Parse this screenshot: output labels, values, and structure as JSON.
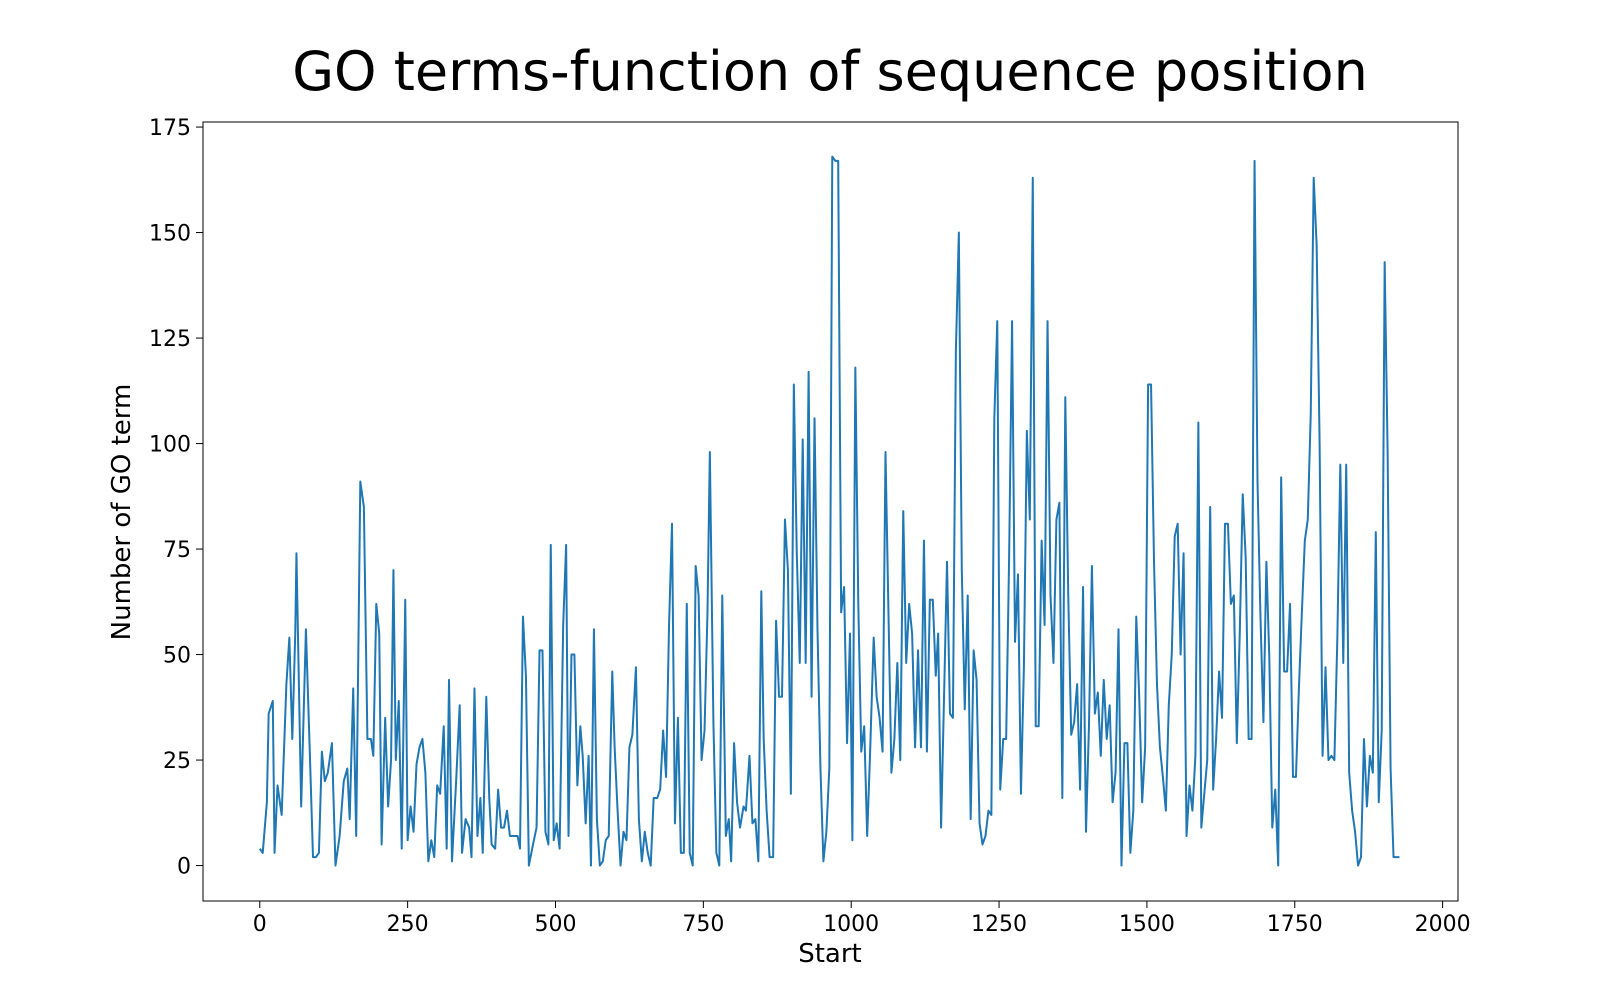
{
  "chart_data": {
    "type": "line",
    "title": "GO terms-function of sequence position",
    "xlabel": "Start",
    "ylabel": "Number of GO term",
    "x": [
      0,
      5,
      12,
      15,
      22,
      25,
      30,
      37,
      45,
      50,
      55,
      60,
      62,
      70,
      78,
      85,
      90,
      95,
      100,
      105,
      110,
      115,
      122,
      128,
      135,
      142,
      148,
      152,
      158,
      163,
      170,
      176,
      182,
      188,
      192,
      197,
      202,
      206,
      212,
      217,
      222,
      226,
      230,
      235,
      240,
      246,
      250,
      255,
      260,
      265,
      270,
      275,
      280,
      285,
      290,
      295,
      300,
      305,
      311,
      316,
      320,
      325,
      332,
      338,
      342,
      348,
      354,
      358,
      363,
      368,
      373,
      377,
      383,
      388,
      392,
      398,
      403,
      408,
      413,
      418,
      423,
      430,
      436,
      440,
      445,
      450,
      455,
      462,
      468,
      473,
      478,
      483,
      488,
      492,
      497,
      502,
      507,
      513,
      518,
      522,
      527,
      532,
      537,
      542,
      546,
      551,
      556,
      560,
      565,
      570,
      575,
      580,
      585,
      590,
      596,
      600,
      605,
      610,
      615,
      620,
      625,
      630,
      636,
      641,
      646,
      651,
      656,
      661,
      666,
      672,
      677,
      682,
      687,
      692,
      697,
      702,
      707,
      712,
      717,
      722,
      727,
      732,
      737,
      742,
      747,
      752,
      757,
      761,
      767,
      772,
      777,
      782,
      788,
      793,
      797,
      802,
      807,
      812,
      818,
      822,
      828,
      833,
      838,
      843,
      848,
      852,
      857,
      862,
      868,
      873,
      878,
      883,
      888,
      893,
      898,
      903,
      908,
      913,
      918,
      923,
      928,
      933,
      938,
      943,
      948,
      953,
      958,
      963,
      968,
      973,
      978,
      983,
      988,
      993,
      998,
      1002,
      1007,
      1012,
      1017,
      1022,
      1027,
      1032,
      1038,
      1043,
      1048,
      1053,
      1058,
      1063,
      1068,
      1073,
      1078,
      1083,
      1088,
      1093,
      1098,
      1103,
      1108,
      1113,
      1118,
      1123,
      1128,
      1133,
      1138,
      1143,
      1147,
      1152,
      1157,
      1162,
      1167,
      1172,
      1177,
      1182,
      1187,
      1192,
      1197,
      1202,
      1207,
      1212,
      1217,
      1222,
      1227,
      1232,
      1237,
      1242,
      1247,
      1252,
      1257,
      1262,
      1267,
      1272,
      1277,
      1282,
      1287,
      1292,
      1297,
      1302,
      1307,
      1312,
      1317,
      1322,
      1327,
      1332,
      1337,
      1342,
      1347,
      1352,
      1357,
      1362,
      1367,
      1372,
      1377,
      1382,
      1387,
      1392,
      1397,
      1402,
      1407,
      1412,
      1417,
      1422,
      1427,
      1432,
      1437,
      1442,
      1447,
      1452,
      1457,
      1462,
      1467,
      1472,
      1477,
      1482,
      1487,
      1492,
      1497,
      1502,
      1507,
      1512,
      1517,
      1522,
      1527,
      1532,
      1537,
      1542,
      1547,
      1552,
      1557,
      1562,
      1567,
      1572,
      1577,
      1582,
      1587,
      1592,
      1597,
      1602,
      1607,
      1612,
      1617,
      1622,
      1627,
      1632,
      1637,
      1642,
      1647,
      1652,
      1657,
      1662,
      1667,
      1672,
      1677,
      1682,
      1687,
      1692,
      1697,
      1702,
      1707,
      1712,
      1717,
      1722,
      1727,
      1732,
      1737,
      1742,
      1747,
      1752,
      1757,
      1762,
      1767,
      1772,
      1777,
      1782,
      1787,
      1792,
      1797,
      1802,
      1807,
      1812,
      1817,
      1822,
      1827,
      1832,
      1837,
      1842,
      1847,
      1852,
      1857,
      1862,
      1867,
      1872,
      1877,
      1882,
      1887,
      1892,
      1897,
      1902,
      1907,
      1912,
      1917,
      1927
    ],
    "series": [
      {
        "name": "GO terms",
        "color": "#1f77b4",
        "values": [
          4,
          3,
          15,
          36,
          39,
          3,
          19,
          12,
          43,
          54,
          30,
          55,
          74,
          14,
          56,
          25,
          2,
          2,
          3,
          27,
          20,
          22,
          29,
          0,
          7,
          20,
          23,
          11,
          42,
          7,
          91,
          85,
          30,
          30,
          26,
          62,
          55,
          5,
          35,
          14,
          25,
          70,
          25,
          39,
          4,
          63,
          6,
          14,
          8,
          24,
          28,
          30,
          22,
          1,
          6,
          2,
          19,
          17,
          33,
          4,
          44,
          1,
          20,
          38,
          3,
          11,
          9,
          2,
          42,
          7,
          16,
          3,
          40,
          16,
          5,
          4,
          18,
          9,
          9,
          13,
          7,
          7,
          7,
          4,
          59,
          45,
          0,
          5,
          9,
          51,
          51,
          8,
          5,
          76,
          6,
          10,
          4,
          57,
          76,
          7,
          50,
          50,
          19,
          33,
          26,
          10,
          26,
          0,
          56,
          11,
          0,
          1,
          6,
          7,
          46,
          28,
          13,
          0,
          8,
          6,
          28,
          31,
          47,
          11,
          1,
          8,
          3,
          0,
          16,
          16,
          18,
          32,
          21,
          57,
          81,
          10,
          35,
          3,
          3,
          62,
          3,
          0,
          71,
          64,
          25,
          32,
          60,
          98,
          34,
          3,
          0,
          64,
          7,
          11,
          1,
          29,
          15,
          9,
          14,
          13,
          26,
          10,
          11,
          1,
          65,
          30,
          13,
          2,
          2,
          58,
          40,
          40,
          82,
          70,
          17,
          114,
          74,
          48,
          101,
          48,
          117,
          40,
          106,
          56,
          23,
          1,
          8,
          23,
          168,
          167,
          167,
          60,
          66,
          29,
          55,
          6,
          118,
          62,
          27,
          33,
          7,
          27,
          54,
          40,
          35,
          27,
          98,
          60,
          22,
          30,
          48,
          25,
          84,
          48,
          62,
          55,
          28,
          51,
          28,
          77,
          27,
          63,
          63,
          45,
          55,
          9,
          40,
          72,
          36,
          35,
          122,
          150,
          70,
          37,
          64,
          11,
          51,
          44,
          10,
          5,
          7,
          13,
          12,
          106,
          129,
          18,
          30,
          30,
          73,
          129,
          53,
          69,
          17,
          47,
          103,
          82,
          163,
          33,
          33,
          77,
          57,
          129,
          64,
          48,
          82,
          86,
          16,
          111,
          64,
          31,
          34,
          43,
          18,
          66,
          8,
          33,
          71,
          36,
          41,
          26,
          44,
          30,
          38,
          15,
          22,
          56,
          0,
          29,
          29,
          3,
          13,
          59,
          40,
          15,
          28,
          114,
          114,
          72,
          43,
          28,
          21,
          13,
          38,
          50,
          78,
          81,
          50,
          74,
          7,
          19,
          13,
          26,
          105,
          9,
          17,
          25,
          85,
          18,
          30,
          46,
          35,
          81,
          81,
          62,
          64,
          29,
          55,
          88,
          73,
          30,
          30,
          167,
          91,
          59,
          34,
          72,
          49,
          9,
          18,
          0,
          92,
          46,
          46,
          62,
          21,
          21,
          42,
          60,
          77,
          82,
          107,
          163,
          147,
          100,
          26,
          47,
          25,
          26,
          25,
          54,
          95,
          48,
          95,
          22,
          13,
          8,
          0,
          2,
          30,
          14,
          26,
          22,
          79,
          15,
          32,
          143,
          98,
          23,
          2,
          2
        ]
      }
    ],
    "xlim": [
      -96,
      2026
    ],
    "ylim": [
      -8.4,
      176.2
    ],
    "xticks": [
      0,
      250,
      500,
      750,
      1000,
      1250,
      1500,
      1750,
      2000
    ],
    "yticks": [
      0,
      25,
      50,
      75,
      100,
      125,
      150,
      175
    ]
  }
}
